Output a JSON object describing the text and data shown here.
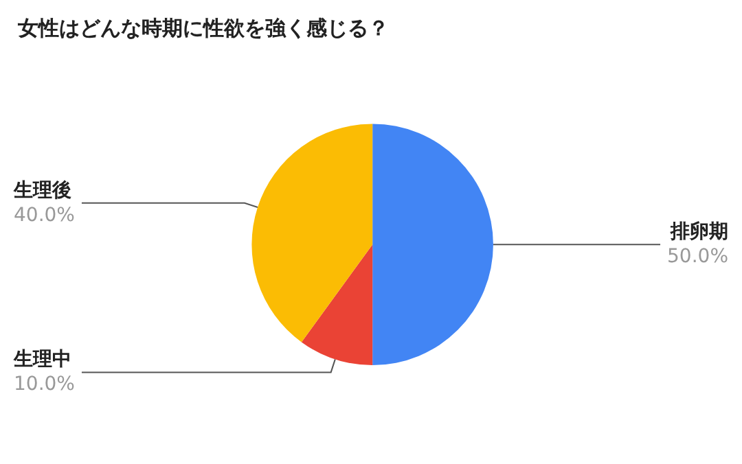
{
  "chart_data": {
    "type": "pie",
    "title": "女性はどんな時期に性欲を強く感じる？",
    "categories": [
      "排卵期",
      "生理中",
      "生理後"
    ],
    "values": [
      50,
      10,
      40
    ],
    "colors": [
      "#4285f4",
      "#ea4335",
      "#fbbc04"
    ],
    "value_labels": [
      "50.0%",
      "10.0%",
      "40.0%"
    ],
    "legend": false
  }
}
